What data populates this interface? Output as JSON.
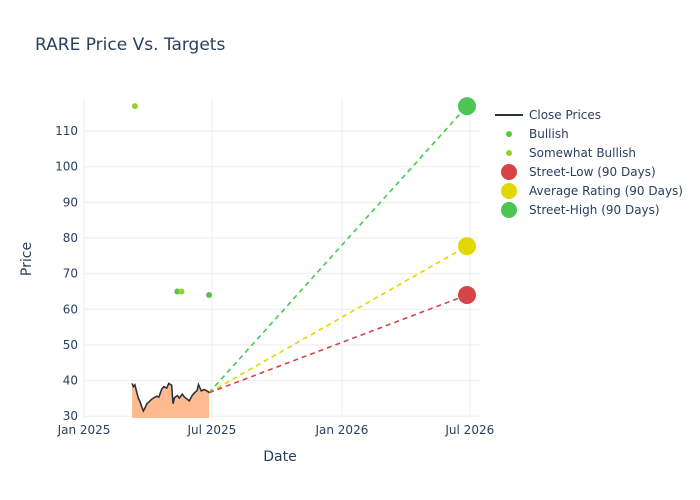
{
  "chart_data": {
    "type": "line",
    "title": "RARE Price Vs. Targets",
    "xlabel": "Date",
    "ylabel": "Price",
    "xlim": [
      "2025-01-01",
      "2026-07-14"
    ],
    "ylim": [
      29.5,
      119
    ],
    "x_ticks": [
      {
        "date": "2025-01-01",
        "label": "Jan 2025"
      },
      {
        "date": "2025-07-01",
        "label": "Jul 2025"
      },
      {
        "date": "2026-01-01",
        "label": "Jan 2026"
      },
      {
        "date": "2026-07-01",
        "label": "Jul 2026"
      }
    ],
    "y_ticks": [
      30,
      40,
      50,
      60,
      70,
      80,
      90,
      100,
      110
    ],
    "grid": true,
    "legend_position": "top-right",
    "colors": {
      "close": "#2a3440",
      "fill": "#ffbb8f",
      "bullish": "#5cc443",
      "somewhat_bullish": "#9acd32",
      "street_low": "#d64545",
      "average": "#e0d800",
      "street_high": "#4cc552",
      "text": "#2a3f5f",
      "grid": "#eeeeee"
    },
    "series": [
      {
        "name": "Close Prices",
        "kind": "line",
        "points": [
          [
            "2025-03-10",
            39.2
          ],
          [
            "2025-03-12",
            38.3
          ],
          [
            "2025-03-14",
            38.8
          ],
          [
            "2025-03-17",
            36.5
          ],
          [
            "2025-03-19",
            35.0
          ],
          [
            "2025-03-21",
            34.2
          ],
          [
            "2025-03-24",
            32.5
          ],
          [
            "2025-03-26",
            31.5
          ],
          [
            "2025-03-28",
            32.2
          ],
          [
            "2025-03-31",
            33.5
          ],
          [
            "2025-04-03",
            34.0
          ],
          [
            "2025-04-07",
            34.8
          ],
          [
            "2025-04-10",
            35.2
          ],
          [
            "2025-04-14",
            35.6
          ],
          [
            "2025-04-17",
            35.4
          ],
          [
            "2025-04-21",
            37.6
          ],
          [
            "2025-04-24",
            38.3
          ],
          [
            "2025-04-28",
            37.9
          ],
          [
            "2025-05-01",
            39.2
          ],
          [
            "2025-05-05",
            38.7
          ],
          [
            "2025-05-07",
            33.5
          ],
          [
            "2025-05-09",
            35.2
          ],
          [
            "2025-05-13",
            35.8
          ],
          [
            "2025-05-16",
            35.1
          ],
          [
            "2025-05-20",
            36.2
          ],
          [
            "2025-05-23",
            35.4
          ],
          [
            "2025-05-27",
            34.8
          ],
          [
            "2025-05-30",
            34.3
          ],
          [
            "2025-06-03",
            35.8
          ],
          [
            "2025-06-06",
            36.5
          ],
          [
            "2025-06-10",
            37.2
          ],
          [
            "2025-06-12",
            38.9
          ],
          [
            "2025-06-16",
            37.1
          ],
          [
            "2025-06-20",
            37.5
          ],
          [
            "2025-06-25",
            37.0
          ],
          [
            "2025-06-27",
            36.6
          ]
        ]
      },
      {
        "name": "Bullish",
        "kind": "markers",
        "points": [
          [
            "2025-05-13",
            65.0
          ],
          [
            "2025-06-27",
            64.0
          ]
        ]
      },
      {
        "name": "Somewhat Bullish",
        "kind": "markers",
        "points": [
          [
            "2025-03-14",
            117.0
          ],
          [
            "2025-05-19",
            65.0
          ]
        ]
      },
      {
        "name": "Street-Low (90 Days)",
        "kind": "target",
        "points": [
          [
            "2025-06-27",
            36.6
          ],
          [
            "2026-06-27",
            64.0
          ]
        ]
      },
      {
        "name": "Average Rating (90 Days)",
        "kind": "target",
        "points": [
          [
            "2025-06-27",
            36.6
          ],
          [
            "2026-06-27",
            77.7
          ]
        ]
      },
      {
        "name": "Street-High (90 Days)",
        "kind": "target",
        "points": [
          [
            "2025-06-27",
            36.6
          ],
          [
            "2026-06-27",
            117.0
          ]
        ]
      }
    ]
  }
}
